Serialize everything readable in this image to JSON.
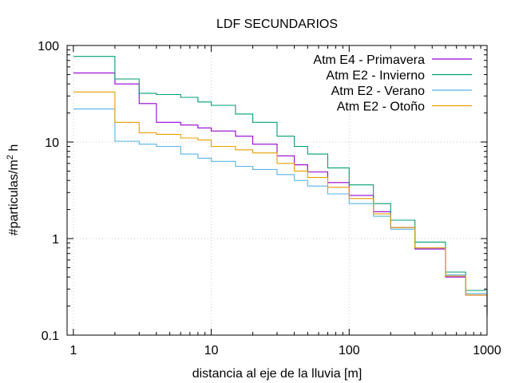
{
  "chart_data": {
    "type": "line",
    "title": "LDF SECUNDARIOS",
    "xlabel": "distancia al eje de la lluvia [m]",
    "ylabel_main": "#particulas/m",
    "ylabel_sup": "2",
    "ylabel_tail": " h",
    "xscale": "log",
    "yscale": "log",
    "xlim": [
      0.9,
      1000
    ],
    "ylim": [
      0.1,
      100
    ],
    "xticks": [
      1,
      10,
      100,
      1000
    ],
    "xtick_labels": [
      "1",
      "10",
      "100",
      "1000"
    ],
    "yticks": [
      0.1,
      1,
      10,
      100
    ],
    "ytick_labels": [
      "0.1",
      "1",
      "10",
      "100"
    ],
    "grid": true,
    "legend_position": "top-right",
    "series": [
      {
        "name": "Atm E4 - Primavera",
        "color": "#9400d3",
        "x": [
          1,
          2,
          3,
          4,
          6,
          8,
          10,
          15,
          20,
          30,
          40,
          50,
          70,
          100,
          150,
          200,
          300,
          500,
          700,
          1000
        ],
        "y": [
          52,
          40,
          25,
          16,
          15,
          14,
          13,
          11.5,
          9.5,
          7.2,
          5.8,
          4.9,
          3.8,
          2.8,
          1.9,
          1.3,
          0.78,
          0.4,
          0.26,
          0.16
        ]
      },
      {
        "name": "Atm E2 - Invierno",
        "color": "#009e73",
        "x": [
          1,
          2,
          3,
          4,
          6,
          8,
          10,
          15,
          20,
          30,
          40,
          50,
          70,
          100,
          150,
          200,
          300,
          500,
          700,
          1000
        ],
        "y": [
          77,
          45,
          32,
          31,
          29,
          26,
          24,
          19.5,
          16,
          11.5,
          9,
          7.5,
          5.4,
          3.6,
          2.3,
          1.55,
          0.92,
          0.45,
          0.29,
          0.17
        ]
      },
      {
        "name": "Atm E2 - Verano",
        "color": "#56b4e9",
        "x": [
          1,
          2,
          3,
          4,
          6,
          8,
          10,
          15,
          20,
          30,
          40,
          50,
          70,
          100,
          150,
          200,
          300,
          500,
          700,
          1000
        ],
        "y": [
          22,
          10.2,
          9.5,
          9,
          7.5,
          6.8,
          6.3,
          5.6,
          5.2,
          4.6,
          4,
          3.5,
          2.9,
          2.3,
          1.7,
          1.25,
          0.8,
          0.42,
          0.27,
          0.16
        ]
      },
      {
        "name": "Atm E2 - Otoño",
        "color": "#e69f00",
        "x": [
          1,
          2,
          3,
          4,
          6,
          8,
          10,
          15,
          20,
          30,
          40,
          50,
          70,
          100,
          150,
          200,
          300,
          500,
          700,
          1000
        ],
        "y": [
          33,
          16,
          12.5,
          12,
          11,
          10.5,
          9,
          8.3,
          7.7,
          6,
          5,
          4.3,
          3.4,
          2.6,
          1.8,
          1.3,
          0.8,
          0.41,
          0.26,
          0.155
        ]
      }
    ]
  }
}
